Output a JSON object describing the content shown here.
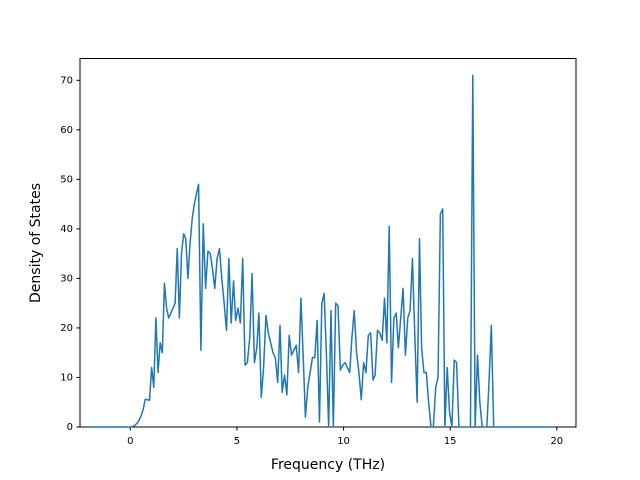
{
  "chart_data": {
    "type": "line",
    "x_label": "Frequency (THz)",
    "y_label": "Density of States",
    "color": "#1f77b4",
    "xlim": [
      -2.36,
      20.9
    ],
    "ylim": [
      0,
      74.4
    ],
    "xticks": [
      0,
      5,
      10,
      15,
      20
    ],
    "yticks": [
      0,
      10,
      20,
      30,
      40,
      50,
      60,
      70
    ],
    "x": [
      -1.9,
      0.0,
      0.1,
      0.2,
      0.3,
      0.4,
      0.5,
      0.6,
      0.7,
      0.8,
      0.9,
      1.0,
      1.1,
      1.2,
      1.3,
      1.4,
      1.5,
      1.6,
      1.7,
      1.8,
      1.9,
      2.0,
      2.1,
      2.2,
      2.3,
      2.4,
      2.5,
      2.6,
      2.7,
      2.8,
      2.9,
      3.0,
      3.1,
      3.2,
      3.31,
      3.42,
      3.53,
      3.64,
      3.75,
      3.85,
      3.96,
      4.07,
      4.18,
      4.29,
      4.4,
      4.51,
      4.62,
      4.73,
      4.84,
      4.94,
      5.05,
      5.16,
      5.27,
      5.38,
      5.49,
      5.6,
      5.71,
      5.82,
      5.93,
      6.03,
      6.14,
      6.25,
      6.36,
      6.47,
      6.58,
      6.69,
      6.8,
      6.91,
      7.02,
      7.12,
      7.23,
      7.34,
      7.45,
      7.56,
      7.67,
      7.78,
      7.89,
      8.0,
      8.11,
      8.21,
      8.32,
      8.43,
      8.54,
      8.65,
      8.76,
      8.87,
      8.98,
      9.09,
      9.2,
      9.3,
      9.41,
      9.52,
      9.63,
      9.74,
      9.85,
      9.96,
      10.07,
      10.18,
      10.29,
      10.39,
      10.5,
      10.61,
      10.72,
      10.83,
      10.94,
      11.05,
      11.16,
      11.27,
      11.38,
      11.48,
      11.59,
      11.7,
      11.81,
      11.92,
      12.03,
      12.14,
      12.25,
      12.36,
      12.47,
      12.57,
      12.68,
      12.79,
      12.9,
      13.01,
      13.12,
      13.23,
      13.34,
      13.45,
      13.56,
      13.66,
      13.77,
      13.88,
      13.99,
      14.1,
      14.21,
      14.32,
      14.43,
      14.54,
      14.65,
      14.75,
      14.86,
      14.97,
      15.08,
      15.19,
      15.3,
      15.41,
      15.52,
      15.63,
      15.74,
      15.84,
      15.95,
      16.06,
      16.17,
      16.28,
      16.39,
      16.5,
      16.61,
      16.72,
      16.83,
      16.93,
      17.04,
      19.9
    ],
    "values": [
      0,
      0,
      0.1,
      0.3,
      0.7,
      1.3,
      2.2,
      3.5,
      5.6,
      5.5,
      5.4,
      12,
      8,
      22,
      11,
      17,
      15,
      29,
      24,
      22,
      23,
      24,
      25,
      36,
      22,
      35,
      39,
      38,
      30,
      37,
      42,
      45,
      47,
      49,
      15.5,
      41,
      28,
      35.5,
      35,
      32,
      28,
      34,
      36,
      30,
      25,
      19.5,
      34,
      21,
      29.5,
      21.5,
      24,
      21,
      34,
      12.5,
      13,
      18,
      31,
      13,
      16,
      23,
      6,
      12,
      22.5,
      19,
      17,
      15,
      14,
      9,
      20.5,
      7,
      10.5,
      6.5,
      18.5,
      14.5,
      15.5,
      16.5,
      11,
      26,
      14,
      2,
      8,
      11,
      14,
      14,
      21.5,
      1,
      25,
      27,
      14,
      0,
      23.5,
      0,
      25,
      24.5,
      11.5,
      12.5,
      13,
      12,
      11,
      18,
      23.5,
      15,
      11,
      5.5,
      13,
      11,
      18.5,
      19,
      9.5,
      10.5,
      19.5,
      19,
      17.5,
      26,
      17,
      40.5,
      9,
      22,
      23,
      16,
      22,
      28,
      14.5,
      22,
      23.5,
      34,
      18.5,
      5,
      38,
      16,
      11,
      11,
      5,
      0,
      0,
      8,
      10,
      43,
      44,
      0,
      12,
      3,
      0,
      13.5,
      13,
      0,
      0,
      0,
      0,
      0,
      0,
      71,
      0,
      14.5,
      5,
      0,
      0,
      0,
      10,
      20.5,
      0,
      0
    ]
  }
}
